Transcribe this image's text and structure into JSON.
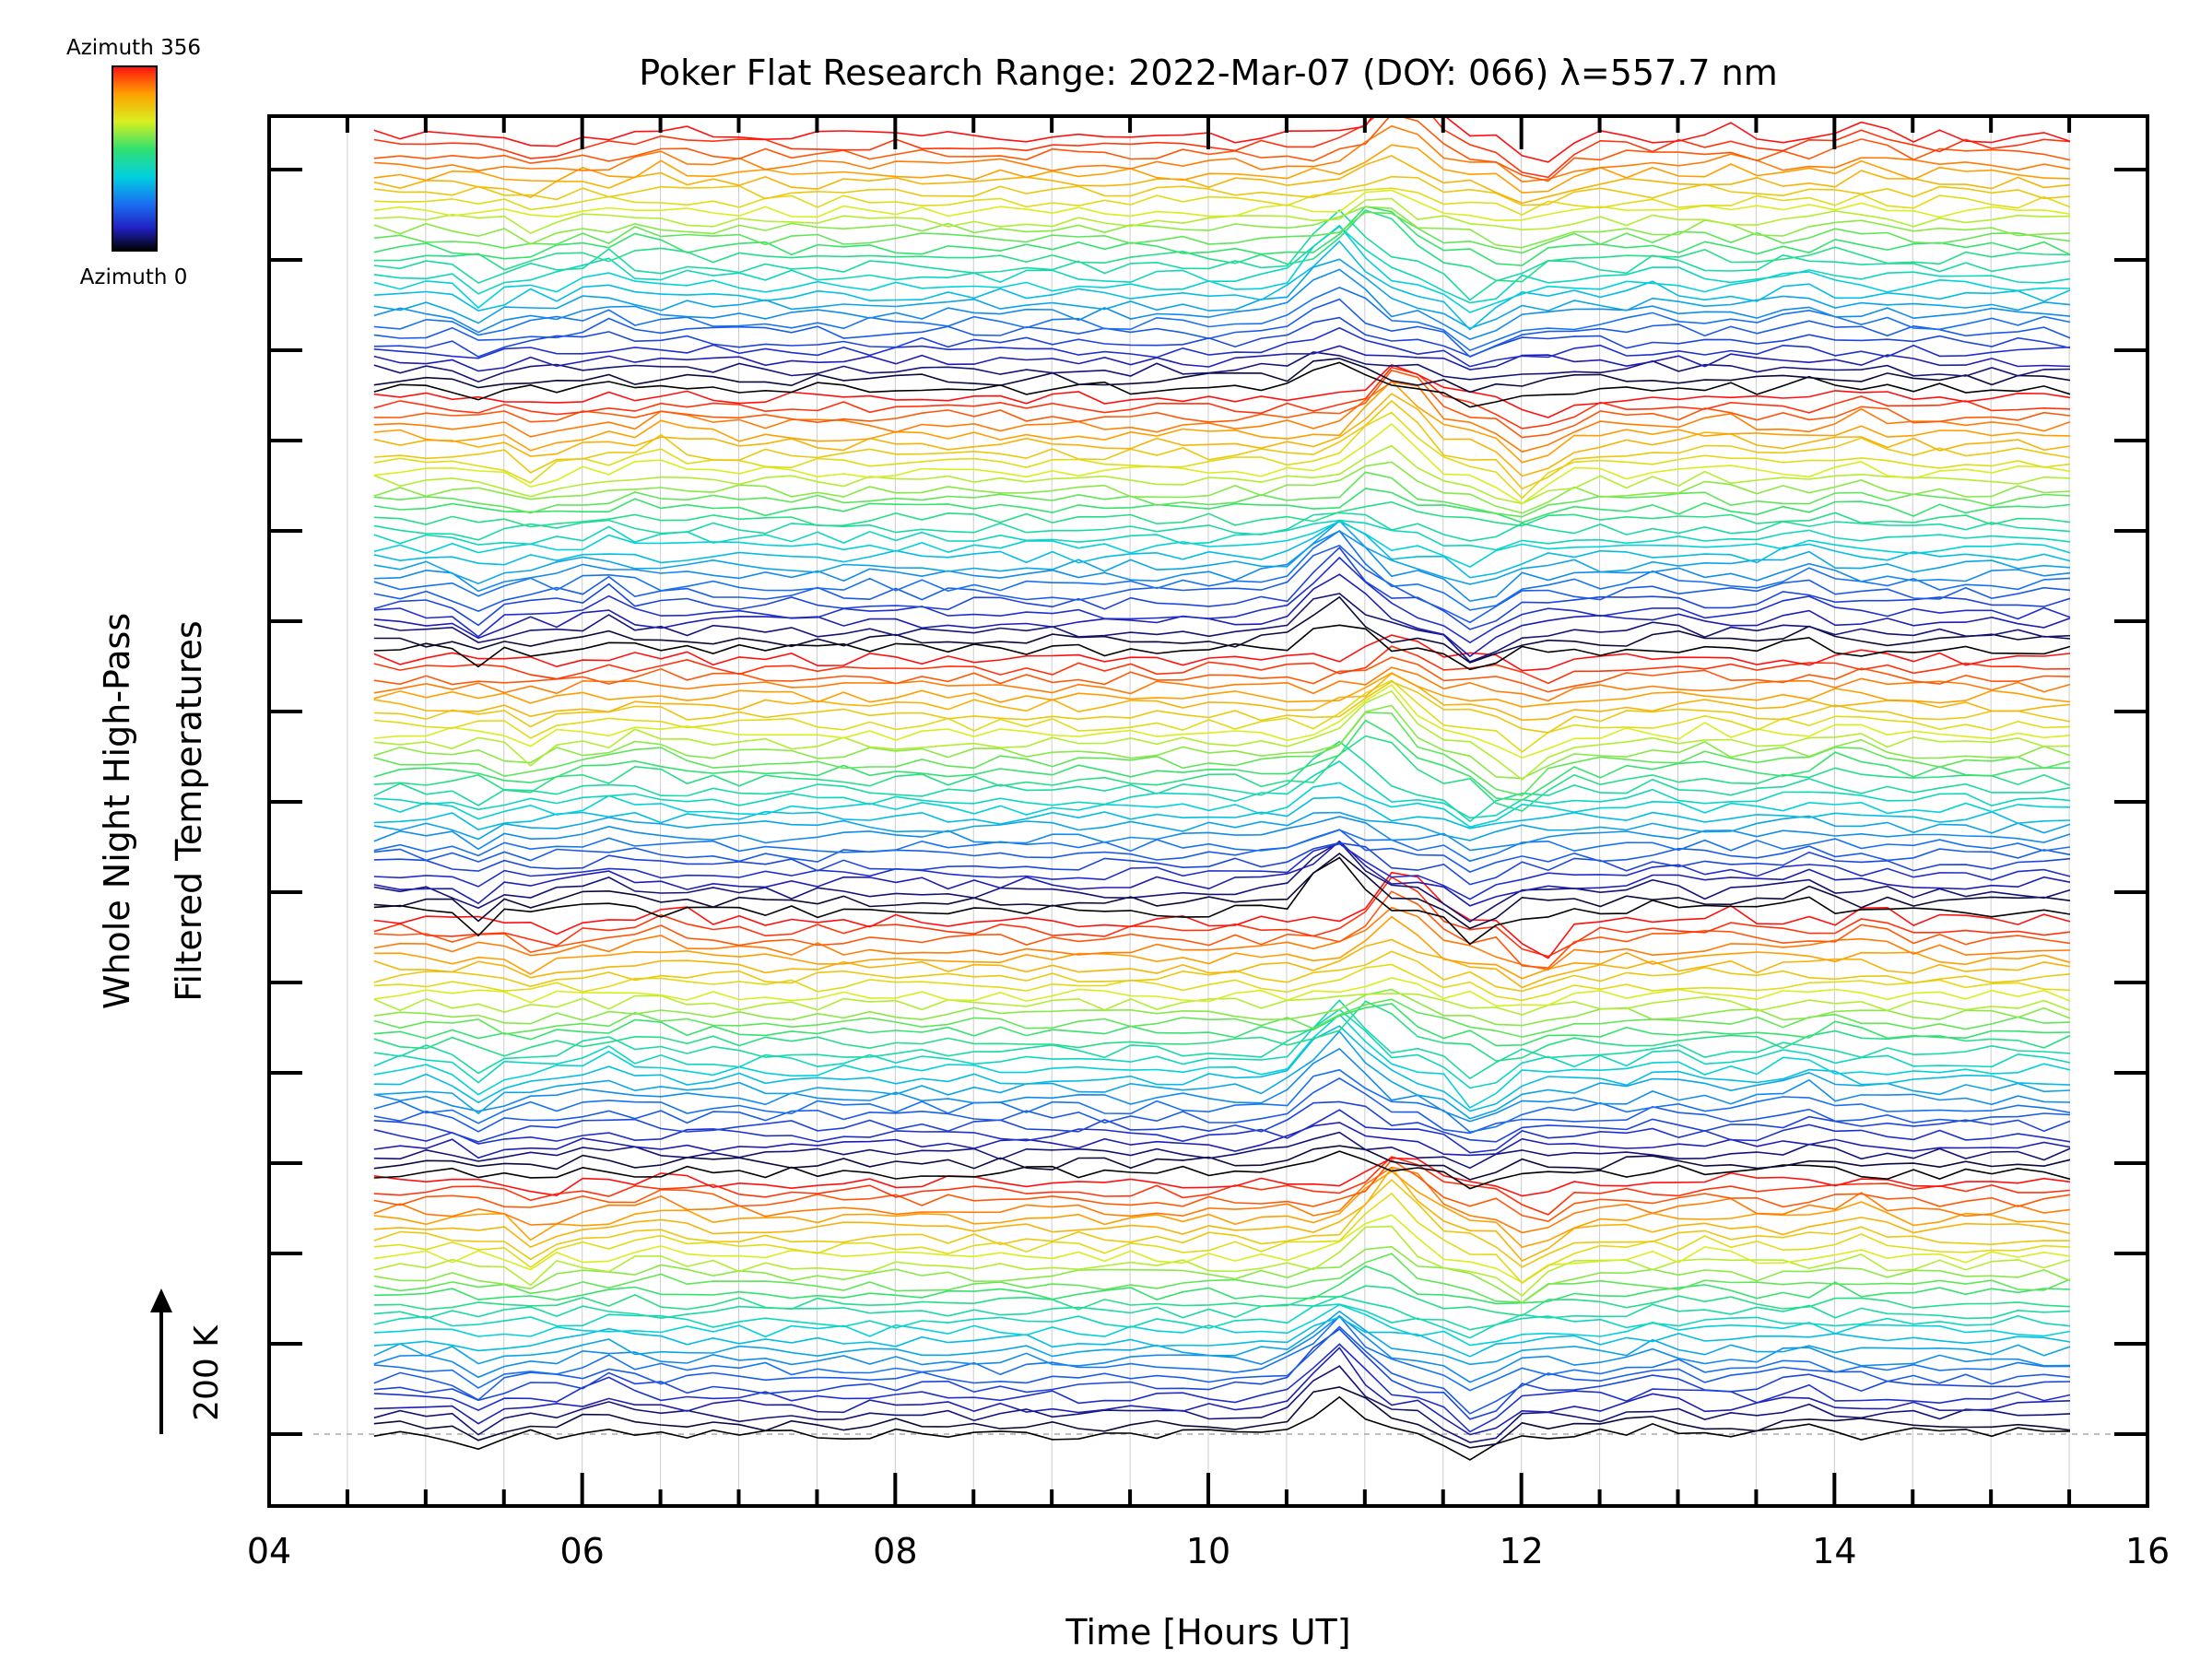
{
  "chart_data": {
    "type": "line",
    "title": "Poker Flat Research Range: 2022-Mar-07 (DOY: 066) λ=557.7 nm",
    "xlabel": "Time [Hours UT]",
    "ylabel_line1": "Whole Night High-Pass",
    "ylabel_line2": "Filtered Temperatures",
    "scale_label": "200 K",
    "xlim": [
      4,
      16
    ],
    "x_ticks": [
      "04",
      "06",
      "08",
      "10",
      "12",
      "14",
      "16"
    ],
    "x_start": 4.67,
    "x_end": 15.58,
    "time_step_hours": 0.1667,
    "series_count": 140,
    "series_per_cycle": 28,
    "grid": true,
    "colorbar": {
      "top_label": "Azimuth 356",
      "bottom_label": "Azimuth 0",
      "min": 0,
      "max": 356
    },
    "features": [
      {
        "time": 10.8,
        "note": "peak near 10.8 UT"
      },
      {
        "time": 11.6,
        "note": "dip near 11.6 UT"
      }
    ]
  },
  "colors": {
    "gridline": "#cccccc",
    "baseline": "#aaaaaa",
    "axis": "#000000"
  }
}
